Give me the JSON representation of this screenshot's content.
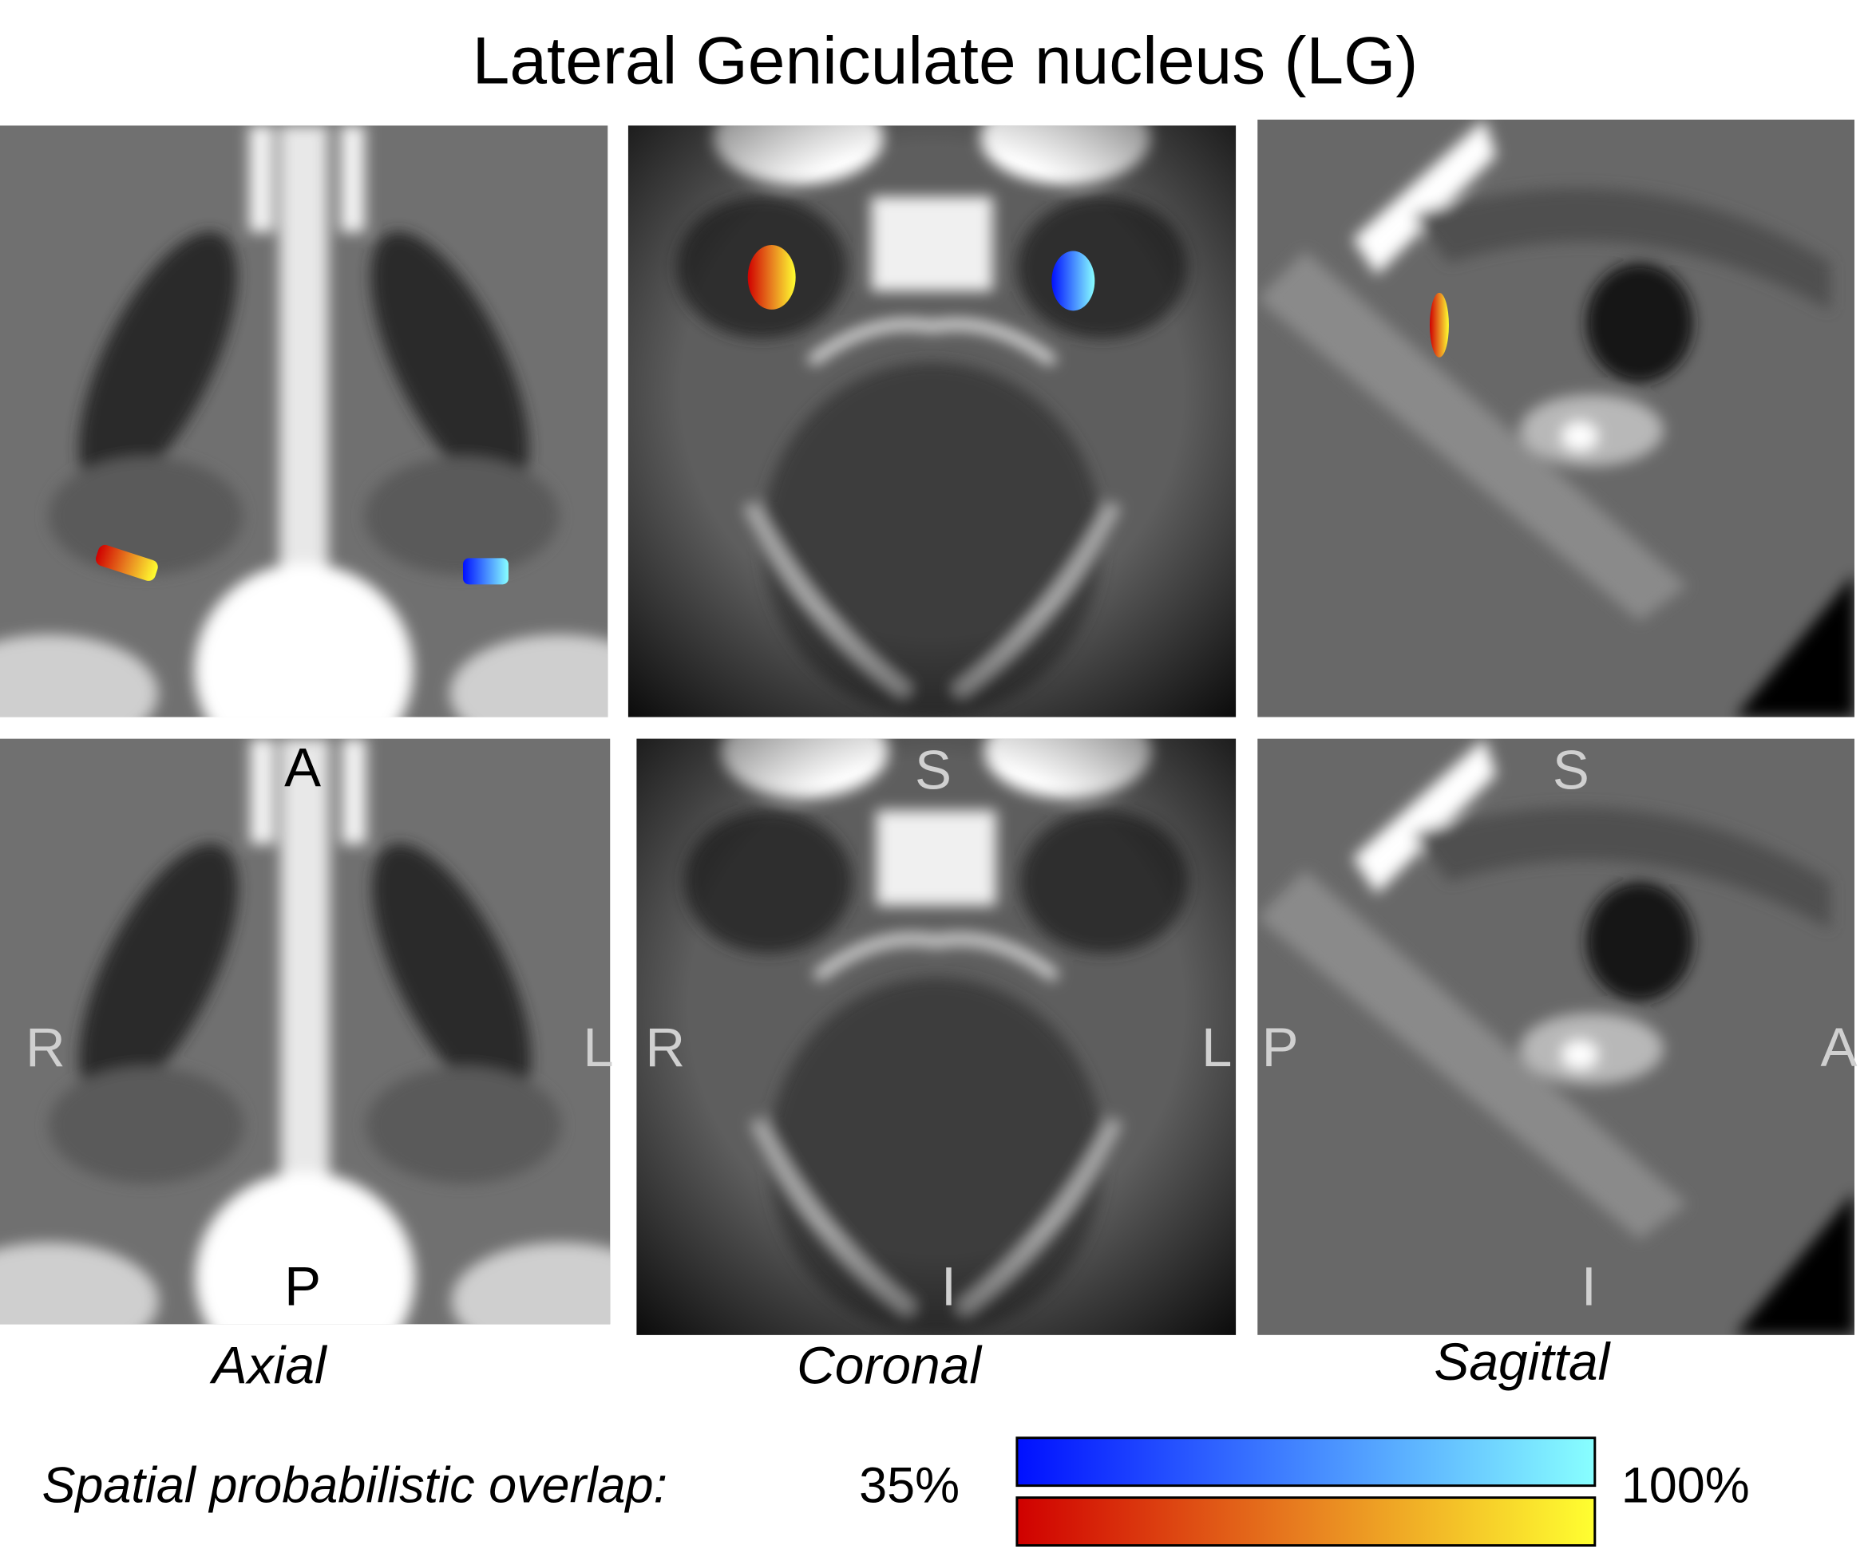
{
  "title": "Lateral Geniculate nucleus (LG)",
  "views": [
    {
      "name": "Axial",
      "top": "A",
      "bottom": "P",
      "left": "R",
      "right": "L"
    },
    {
      "name": "Coronal",
      "top": "S",
      "bottom": "I",
      "left": "R",
      "right": "L"
    },
    {
      "name": "Sagittal",
      "top": "S",
      "bottom": "I",
      "left": "P",
      "right": "A"
    }
  ],
  "legend": {
    "label": "Spatial probabilistic overlap:",
    "min": "35%",
    "max": "100%"
  }
}
